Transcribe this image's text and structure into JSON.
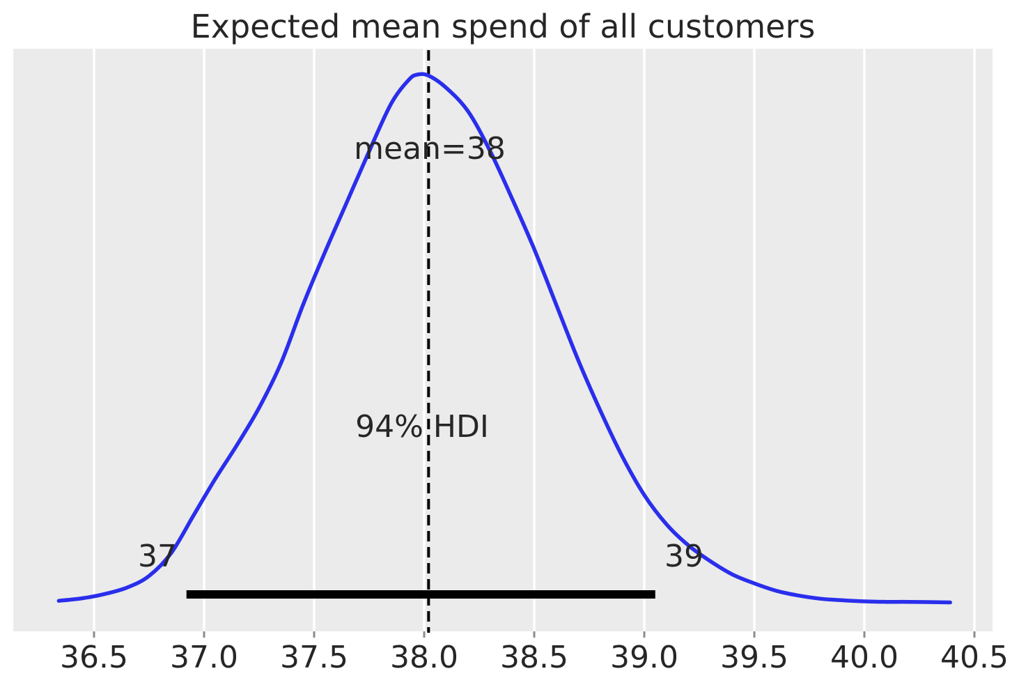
{
  "title": "Expected mean spend of all customers",
  "colors": {
    "curve": "#2a2eec",
    "plot_background": "#ebebeb",
    "gridline": "#ffffff",
    "text": "#262626",
    "mean_line": "#000000",
    "hdi_bar": "#000000",
    "tick_mark": "#8c8c8c"
  },
  "annotations": {
    "mean_label": "mean=38",
    "hdi_label": "94% HDI",
    "hdi_low_label": "37",
    "hdi_high_label": "39"
  },
  "x_axis": {
    "tick_labels": [
      "36.5",
      "37.0",
      "37.5",
      "38.0",
      "38.5",
      "39.0",
      "39.5",
      "40.0",
      "40.5"
    ]
  },
  "chart_data": {
    "type": "line",
    "subtype": "posterior-kde-density",
    "title": "Expected mean spend of all customers",
    "xlabel": "",
    "ylabel": "",
    "grid": true,
    "legend": false,
    "xlim": [
      36.13,
      40.58
    ],
    "x_ticks": [
      36.5,
      37.0,
      37.5,
      38.0,
      38.5,
      39.0,
      39.5,
      40.0,
      40.5
    ],
    "mean": 38,
    "mean_line_x": 38.02,
    "hdi_probability": 0.94,
    "hdi_interval": [
      37,
      39
    ],
    "hdi_line_extent": [
      36.92,
      39.05
    ],
    "x": [
      36.34,
      36.45,
      36.55,
      36.65,
      36.75,
      36.85,
      36.95,
      37.05,
      37.15,
      37.25,
      37.35,
      37.45,
      37.55,
      37.65,
      37.75,
      37.85,
      37.93,
      37.97,
      38.02,
      38.1,
      38.2,
      38.3,
      38.4,
      38.5,
      38.6,
      38.7,
      38.8,
      38.9,
      39.0,
      39.1,
      39.2,
      39.3,
      39.4,
      39.5,
      39.6,
      39.7,
      39.8,
      39.9,
      40.0,
      40.1,
      40.2,
      40.39
    ],
    "density_normalized": [
      0.005,
      0.01,
      0.018,
      0.03,
      0.052,
      0.095,
      0.165,
      0.235,
      0.3,
      0.37,
      0.455,
      0.565,
      0.665,
      0.76,
      0.855,
      0.945,
      0.99,
      1.0,
      0.998,
      0.975,
      0.93,
      0.855,
      0.765,
      0.67,
      0.565,
      0.46,
      0.365,
      0.278,
      0.205,
      0.15,
      0.11,
      0.08,
      0.055,
      0.038,
      0.024,
      0.015,
      0.009,
      0.006,
      0.004,
      0.003,
      0.003,
      0.002
    ]
  }
}
